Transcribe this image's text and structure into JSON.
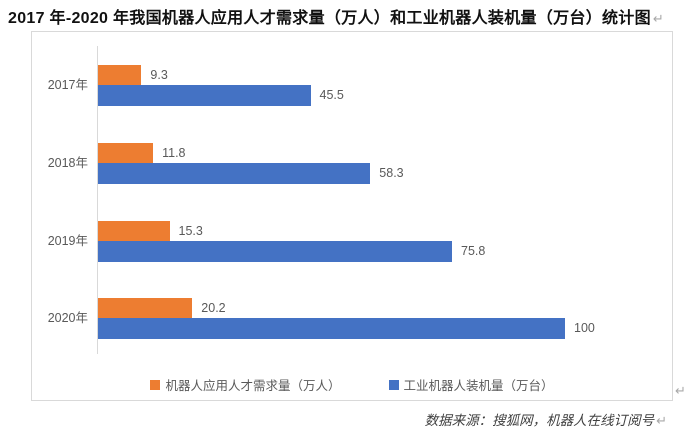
{
  "document": {
    "title": "2017 年-2020 年我国机器人应用人才需求量（万人）和工业机器人装机量（万台）统计图",
    "title_paragraph_mark": "↵",
    "chart_paragraph_mark": "↵",
    "source_note": "数据来源：搜狐网，机器人在线订阅号",
    "source_paragraph_mark": "↵"
  },
  "colors": {
    "series_talent": "#ED7D31",
    "series_installed": "#4472C4",
    "axis_line": "#D9D9D9",
    "chart_border": "#D9D9D9",
    "chart_text": "#595959"
  },
  "chart_data": {
    "type": "bar",
    "orientation": "horizontal",
    "title": "",
    "xlabel": "",
    "ylabel": "",
    "categories": [
      "2017年",
      "2018年",
      "2019年",
      "2020年"
    ],
    "series": [
      {
        "name": "机器人应用人才需求量（万人）",
        "color": "#ED7D31",
        "values": [
          9.3,
          11.8,
          15.3,
          20.2
        ]
      },
      {
        "name": "工业机器人装机量（万台）",
        "color": "#4472C4",
        "values": [
          45.5,
          58.3,
          75.8,
          100
        ]
      }
    ],
    "xlim": [
      0,
      100
    ],
    "grid": false,
    "value_labels_shown": true,
    "legend_position": "bottom"
  }
}
